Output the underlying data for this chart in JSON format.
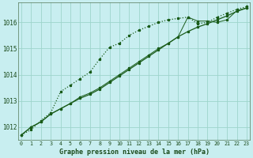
{
  "title": "Graphe pression niveau de la mer (hPa)",
  "background_color": "#c8eef0",
  "grid_color": "#9dd4cc",
  "line_color": "#1a5c1a",
  "x_hours": [
    0,
    1,
    2,
    3,
    4,
    5,
    6,
    7,
    8,
    9,
    10,
    11,
    12,
    13,
    14,
    15,
    16,
    17,
    18,
    19,
    20,
    21,
    22,
    23
  ],
  "series_dotted": [
    1011.7,
    1011.9,
    1012.25,
    1012.55,
    1013.35,
    1013.6,
    1013.85,
    1014.1,
    1014.6,
    1015.05,
    1015.2,
    1015.5,
    1015.7,
    1015.85,
    1016.0,
    1016.1,
    1016.15,
    1016.2,
    1015.95,
    1016.0,
    1016.2,
    1016.35,
    1016.5,
    1016.6
  ],
  "series_solid": [
    1011.7,
    1012.0,
    1012.2,
    1012.5,
    1012.7,
    1012.9,
    1013.1,
    1013.25,
    1013.45,
    1013.7,
    1013.95,
    1014.2,
    1014.45,
    1014.7,
    1014.95,
    1015.2,
    1015.45,
    1015.65,
    1015.82,
    1015.95,
    1016.1,
    1016.25,
    1016.42,
    1016.55
  ],
  "series_solid2": [
    1011.7,
    1012.0,
    1012.2,
    1012.5,
    1012.7,
    1012.9,
    1013.15,
    1013.3,
    1013.5,
    1013.75,
    1014.0,
    1014.25,
    1014.5,
    1014.75,
    1015.0,
    1015.2,
    1015.45,
    1016.2,
    1016.05,
    1016.05,
    1016.0,
    1016.1,
    1016.45,
    1016.55
  ],
  "ylim": [
    1011.5,
    1016.75
  ],
  "yticks": [
    1012,
    1013,
    1014,
    1015,
    1016
  ],
  "xlim": [
    -0.3,
    23.3
  ]
}
